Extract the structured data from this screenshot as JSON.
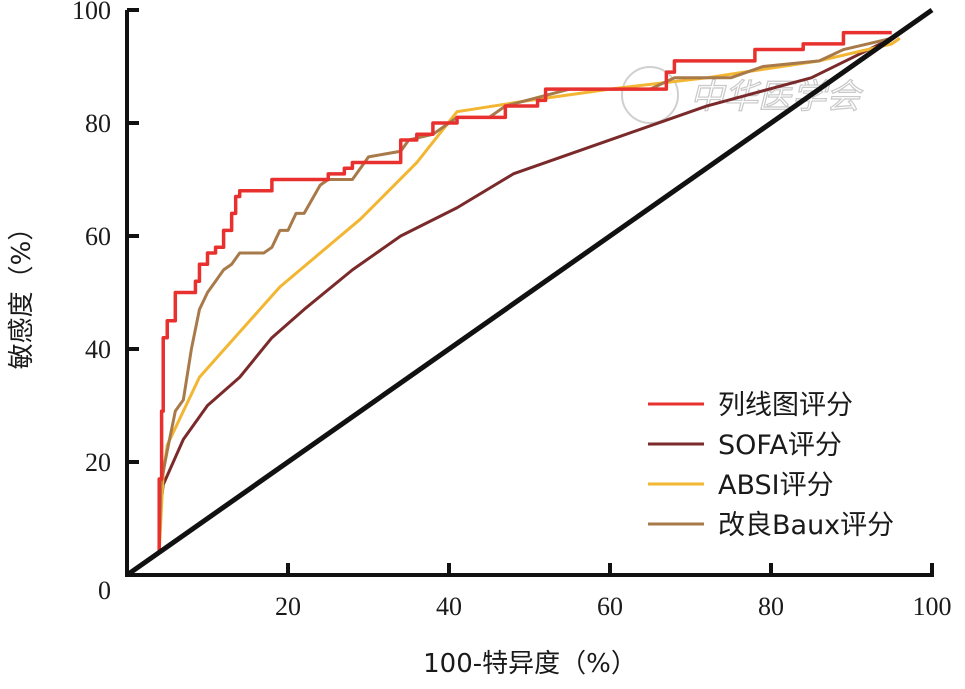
{
  "chart_data": {
    "type": "line",
    "title": "",
    "xlabel": "100-特异度（%）",
    "ylabel": "敏感度（%）",
    "xlim": [
      0,
      100
    ],
    "ylim": [
      0,
      100
    ],
    "xticks": [
      0,
      20,
      40,
      60,
      80,
      100
    ],
    "yticks": [
      0,
      20,
      40,
      60,
      80,
      100
    ],
    "x_tick_labels": [
      "20",
      "40",
      "60",
      "80",
      "100"
    ],
    "y_tick_labels": [
      "0",
      "20",
      "40",
      "60",
      "80",
      "100"
    ],
    "grid": false,
    "legend_position": "bottom-right",
    "reference_line": {
      "name": "diagonal",
      "points": [
        [
          0,
          0
        ],
        [
          100,
          100
        ]
      ],
      "color": "#111111"
    },
    "series": [
      {
        "name": "列线图评分",
        "color": "#e8312f",
        "step": true,
        "points": [
          [
            4,
            4
          ],
          [
            4,
            10
          ],
          [
            4,
            17
          ],
          [
            4.3,
            29
          ],
          [
            4.5,
            42
          ],
          [
            5,
            45
          ],
          [
            6,
            50
          ],
          [
            8,
            50
          ],
          [
            8.5,
            52
          ],
          [
            9,
            55
          ],
          [
            10,
            57
          ],
          [
            11,
            58
          ],
          [
            12,
            61
          ],
          [
            13,
            64
          ],
          [
            13.5,
            67
          ],
          [
            14,
            68
          ],
          [
            18,
            69
          ],
          [
            18,
            70
          ],
          [
            24,
            70
          ],
          [
            25,
            71
          ],
          [
            27,
            72
          ],
          [
            28,
            73
          ],
          [
            33,
            73
          ],
          [
            34,
            77
          ],
          [
            36,
            78
          ],
          [
            38,
            80
          ],
          [
            40,
            80
          ],
          [
            41,
            81
          ],
          [
            45,
            81
          ],
          [
            47,
            83
          ],
          [
            51,
            84
          ],
          [
            52,
            86
          ],
          [
            67,
            86
          ],
          [
            67,
            89
          ],
          [
            68,
            91
          ],
          [
            78,
            91
          ],
          [
            78,
            93
          ],
          [
            84,
            93
          ],
          [
            84,
            94
          ],
          [
            89,
            94
          ],
          [
            89,
            96
          ],
          [
            95,
            96
          ]
        ]
      },
      {
        "name": "SOFA评分",
        "color": "#7a2a2a",
        "step": false,
        "points": [
          [
            4,
            10
          ],
          [
            4.5,
            16
          ],
          [
            7,
            24
          ],
          [
            10,
            30
          ],
          [
            14,
            35
          ],
          [
            18,
            42
          ],
          [
            22,
            47
          ],
          [
            28,
            54
          ],
          [
            34,
            60
          ],
          [
            41,
            65
          ],
          [
            48,
            71
          ],
          [
            60,
            77
          ],
          [
            72,
            83
          ],
          [
            85,
            88
          ],
          [
            95,
            95
          ]
        ]
      },
      {
        "name": "ABSI评分",
        "color": "#f2b632",
        "step": false,
        "points": [
          [
            4,
            4
          ],
          [
            4.5,
            18
          ],
          [
            5,
            23
          ],
          [
            9,
            35
          ],
          [
            14,
            43
          ],
          [
            19,
            51
          ],
          [
            29,
            63
          ],
          [
            36,
            73
          ],
          [
            41,
            82
          ],
          [
            50,
            84
          ],
          [
            60,
            86
          ],
          [
            72,
            88
          ],
          [
            86,
            91
          ],
          [
            95,
            94
          ],
          [
            96,
            95
          ]
        ]
      },
      {
        "name": "改良Baux评分",
        "color": "#a87a4a",
        "step": false,
        "points": [
          [
            4,
            4
          ],
          [
            4.2,
            16
          ],
          [
            5,
            22
          ],
          [
            6,
            29
          ],
          [
            7,
            31
          ],
          [
            8,
            40
          ],
          [
            9,
            47
          ],
          [
            10,
            50
          ],
          [
            11,
            52
          ],
          [
            12,
            54
          ],
          [
            13,
            55
          ],
          [
            14,
            57
          ],
          [
            17,
            57
          ],
          [
            18,
            58
          ],
          [
            19,
            61
          ],
          [
            20,
            61
          ],
          [
            21,
            64
          ],
          [
            22,
            64
          ],
          [
            24,
            69
          ],
          [
            25,
            70
          ],
          [
            28,
            70
          ],
          [
            29,
            72
          ],
          [
            30,
            74
          ],
          [
            34,
            75
          ],
          [
            35,
            77
          ],
          [
            38,
            78
          ],
          [
            41,
            81
          ],
          [
            45,
            81
          ],
          [
            47,
            83
          ],
          [
            55,
            86
          ],
          [
            65,
            86
          ],
          [
            68,
            88
          ],
          [
            75,
            88
          ],
          [
            79,
            90
          ],
          [
            86,
            91
          ],
          [
            89,
            93
          ],
          [
            92,
            94
          ],
          [
            95,
            95
          ]
        ]
      }
    ],
    "watermark": "中华医学会"
  }
}
